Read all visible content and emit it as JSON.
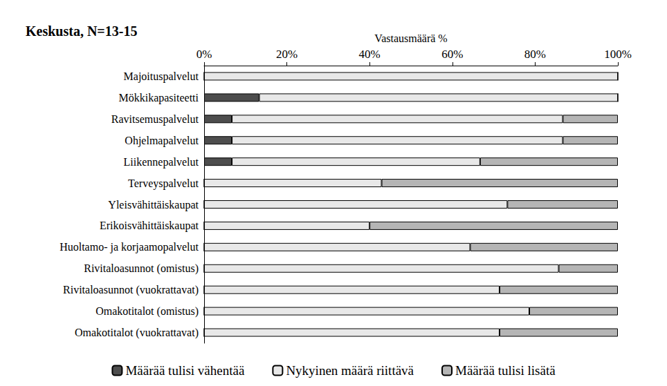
{
  "chart_data": {
    "type": "bar",
    "title": "Keskusta, N=13-15",
    "xlabel": "Vastausmäärä %",
    "orientation": "horizontal",
    "stacked": true,
    "grid": false,
    "legend": "bottom",
    "categories": [
      "Majoituspalvelut",
      "Mökkikapasiteetti",
      "Ravitsemuspalvelut",
      "Ohjelmapalvelut",
      "Liikennepalvelut",
      "Terveyspalvelut",
      "Yleisvähittäiskaupat",
      "Erikoisvähittäiskaupat",
      "Huoltamo- ja korjaamopalvelut",
      "Rivitaloasunnot (omistus)",
      "Rivitaloasunnot (vuokrattavat)",
      "Omakotitalot (omistus)",
      "Omakotitalot (vuokrattavat)"
    ],
    "series": [
      {
        "name": "Määrää tulisi vähentää",
        "color": "#4d4d4d",
        "values": [
          0,
          13.3,
          6.7,
          6.7,
          6.7,
          0,
          0,
          0,
          0,
          0,
          0,
          0,
          0
        ]
      },
      {
        "name": "Nykyinen määrä riittävä",
        "color": "#e8e8e8",
        "values": [
          100,
          86.7,
          80,
          80,
          60,
          42.9,
          73.3,
          40,
          64.3,
          85.7,
          71.4,
          78.6,
          71.4
        ]
      },
      {
        "name": "Määrää tulisi lisätä",
        "color": "#b5b5b5",
        "values": [
          0,
          0,
          13.3,
          13.3,
          33.3,
          57.1,
          26.7,
          60,
          35.7,
          14.3,
          28.6,
          21.4,
          28.6
        ]
      }
    ],
    "xlim": [
      0,
      100
    ],
    "xticks": [
      {
        "value": 0,
        "label": "0%"
      },
      {
        "value": 20,
        "label": "20%"
      },
      {
        "value": 40,
        "label": "40%"
      },
      {
        "value": 60,
        "label": "60%"
      },
      {
        "value": 80,
        "label": "80%"
      },
      {
        "value": 100,
        "label": "100%"
      }
    ]
  }
}
